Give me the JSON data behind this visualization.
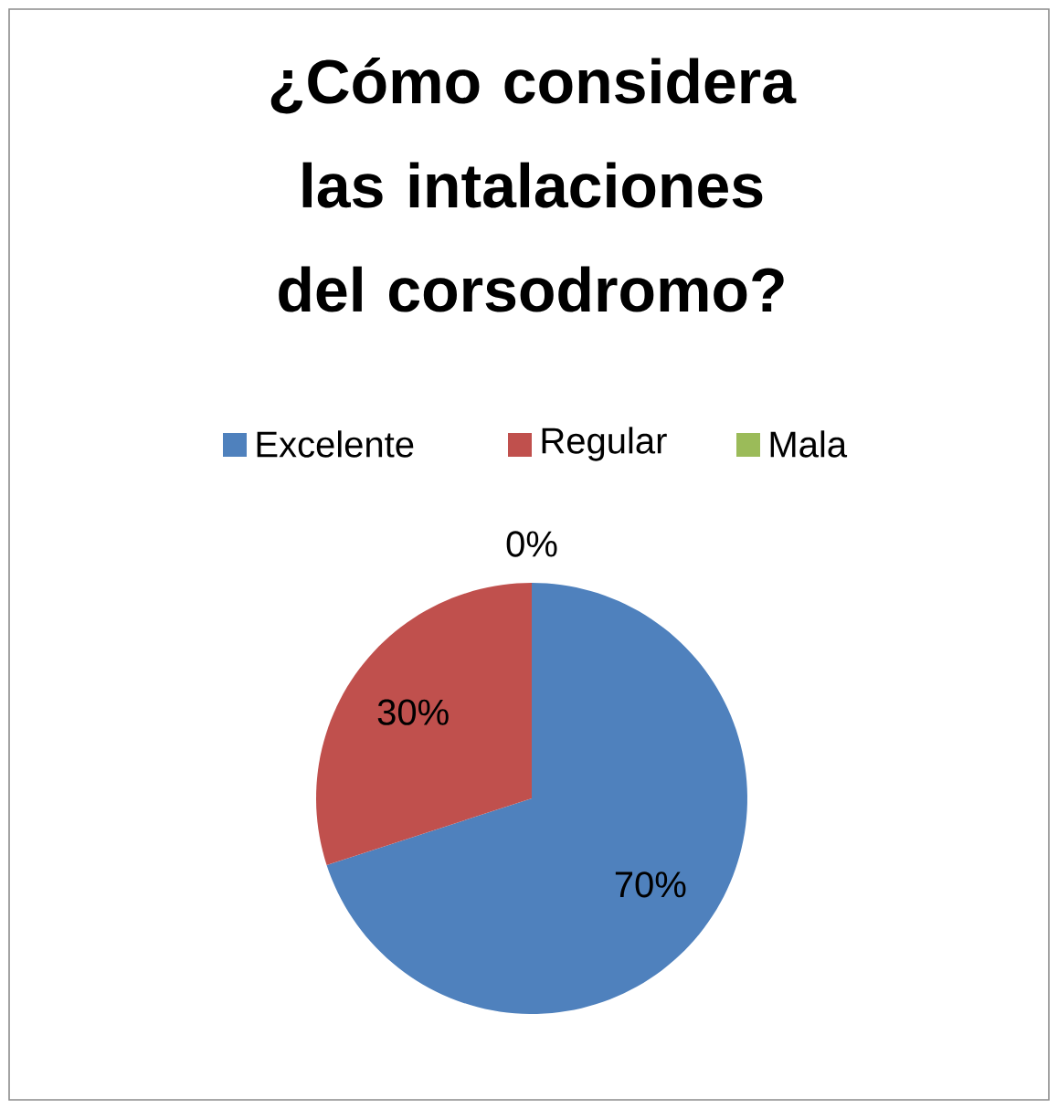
{
  "chart_data": {
    "type": "pie",
    "title": "¿Cómo considera las intalaciones del corsodromo?",
    "categories": [
      "Excelente",
      "Regular",
      "Mala"
    ],
    "values": [
      70,
      30,
      0
    ],
    "colors": [
      "#4f81bd",
      "#c0504d",
      "#9bbb59"
    ],
    "value_labels": [
      "70%",
      "30%",
      "0%"
    ],
    "legend": "top"
  }
}
